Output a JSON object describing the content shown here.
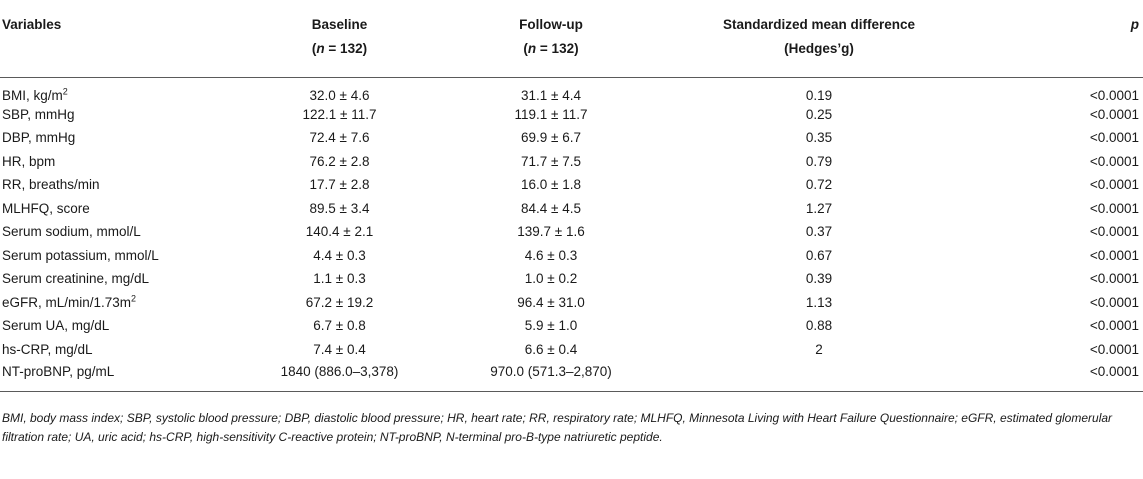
{
  "header": {
    "variables": "Variables",
    "baseline": "Baseline",
    "baseline_n_label": "n",
    "baseline_n_value": "= 132",
    "followup": "Follow-up",
    "followup_n_label": "n",
    "followup_n_value": "= 132",
    "smd_line1": "Standardized mean difference",
    "smd_line2": "(Hedges’g)",
    "p": "p"
  },
  "rows": [
    {
      "variable": "BMI, kg/m",
      "sup": "2",
      "baseline": "32.0 ± 4.6",
      "followup": "31.1 ± 4.4",
      "smd": "0.19",
      "p": "<0.0001"
    },
    {
      "variable": "SBP, mmHg",
      "sup": "",
      "baseline": "122.1 ± 11.7",
      "followup": "119.1 ± 11.7",
      "smd": "0.25",
      "p": "<0.0001"
    },
    {
      "variable": "DBP, mmHg",
      "sup": "",
      "baseline": "72.4 ± 7.6",
      "followup": "69.9 ± 6.7",
      "smd": "0.35",
      "p": "<0.0001"
    },
    {
      "variable": "HR, bpm",
      "sup": "",
      "baseline": "76.2 ± 2.8",
      "followup": "71.7 ± 7.5",
      "smd": "0.79",
      "p": "<0.0001"
    },
    {
      "variable": "RR, breaths/min",
      "sup": "",
      "baseline": "17.7 ± 2.8",
      "followup": "16.0 ± 1.8",
      "smd": "0.72",
      "p": "<0.0001"
    },
    {
      "variable": "MLHFQ, score",
      "sup": "",
      "baseline": "89.5 ± 3.4",
      "followup": "84.4 ± 4.5",
      "smd": "1.27",
      "p": "<0.0001"
    },
    {
      "variable": "Serum sodium, mmol/L",
      "sup": "",
      "baseline": "140.4 ± 2.1",
      "followup": "139.7 ± 1.6",
      "smd": "0.37",
      "p": "<0.0001"
    },
    {
      "variable": "Serum potassium, mmol/L",
      "sup": "",
      "baseline": "4.4 ± 0.3",
      "followup": "4.6 ± 0.3",
      "smd": "0.67",
      "p": "<0.0001"
    },
    {
      "variable": "Serum creatinine, mg/dL",
      "sup": "",
      "baseline": "1.1 ± 0.3",
      "followup": "1.0 ± 0.2",
      "smd": "0.39",
      "p": "<0.0001"
    },
    {
      "variable": "eGFR, mL/min/1.73m",
      "sup": "2",
      "baseline": "67.2 ± 19.2",
      "followup": "96.4 ± 31.0",
      "smd": "1.13",
      "p": "<0.0001"
    },
    {
      "variable": "Serum UA, mg/dL",
      "sup": "",
      "baseline": "6.7 ± 0.8",
      "followup": "5.9 ± 1.0",
      "smd": "0.88",
      "p": "<0.0001"
    },
    {
      "variable": "hs-CRP, mg/dL",
      "sup": "",
      "baseline": "7.4 ± 0.4",
      "followup": "6.6 ± 0.4",
      "smd": "2",
      "p": "<0.0001"
    },
    {
      "variable": "NT-proBNP, pg/mL",
      "sup": "",
      "baseline": "1840 (886.0–3,378)",
      "followup": "970.0 (571.3–2,870)",
      "smd": "",
      "p": "<0.0001"
    }
  ],
  "footnote": "BMI, body mass index; SBP, systolic blood pressure; DBP, diastolic blood pressure; HR, heart rate; RR, respiratory rate; MLHFQ, Minnesota Living with Heart Failure Questionnaire; eGFR, estimated glomerular filtration rate; UA, uric acid; hs-CRP, high-sensitivity C-reactive protein; NT-proBNP, N-terminal pro-B-type natriuretic peptide."
}
